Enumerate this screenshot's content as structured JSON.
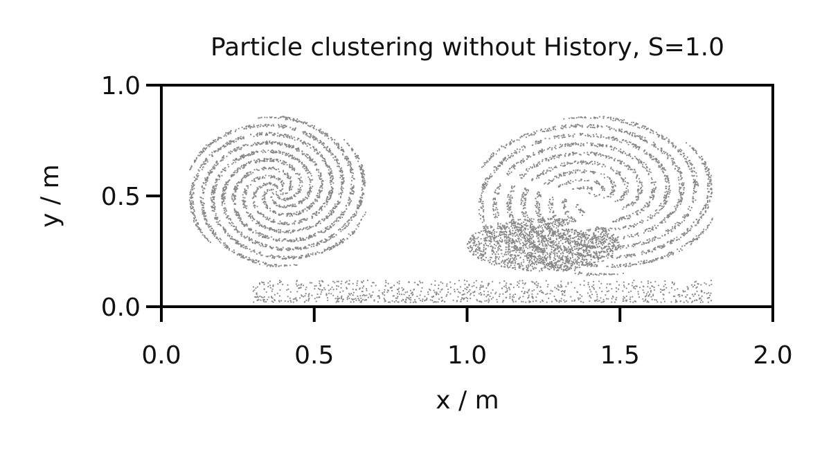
{
  "chart_data": {
    "type": "scatter",
    "title": "Particle clustering without History, S=1.0",
    "xlabel": "x / m",
    "ylabel": "y / m",
    "xlim": [
      0.0,
      2.0
    ],
    "ylim": [
      0.0,
      1.0
    ],
    "x_ticks": [
      "0.0",
      "0.5",
      "1.0",
      "1.5",
      "2.0"
    ],
    "y_ticks": [
      "0.0",
      "0.5",
      "1.0"
    ],
    "grid": false,
    "legend": "none",
    "point_color": "#888888",
    "structures": [
      {
        "name": "left-vortex",
        "shape": "disc",
        "center": [
          0.38,
          0.52
        ],
        "radius_x": 0.3,
        "radius_y": 0.34,
        "spiral_arms": true
      },
      {
        "name": "right-vortex",
        "shape": "disc",
        "center": [
          1.42,
          0.5
        ],
        "radius_x": 0.4,
        "radius_y": 0.36,
        "spiral_arms": true
      },
      {
        "name": "lower-right-core",
        "shape": "ellipse",
        "center": [
          1.25,
          0.28
        ],
        "radius_x": 0.25,
        "radius_y": 0.12
      },
      {
        "name": "bottom-tail",
        "shape": "band",
        "x_range": [
          0.3,
          1.8
        ],
        "y_range": [
          0.02,
          0.12
        ]
      }
    ],
    "empty_s_channel": {
      "x_range": [
        1.1,
        1.6
      ],
      "y_range": [
        0.35,
        0.75
      ]
    }
  }
}
